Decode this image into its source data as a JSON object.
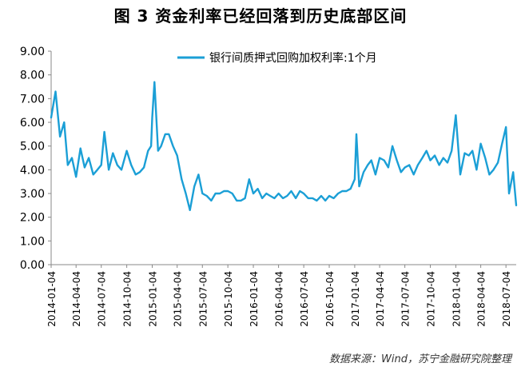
{
  "header": {
    "title": "图 3  资金利率已经回落到历史底部区间"
  },
  "footer": {
    "source": "数据来源：Wind，苏宁金融研究院整理"
  },
  "chart_data": {
    "type": "line",
    "title": "图 3  资金利率已经回落到历史底部区间",
    "xlabel": "",
    "ylabel": "",
    "ylim": [
      0,
      9
    ],
    "yticks": [
      "0.00",
      "1.00",
      "2.00",
      "3.00",
      "4.00",
      "5.00",
      "6.00",
      "7.00",
      "8.00",
      "9.00"
    ],
    "xticks": [
      "2014-01-04",
      "2014-04-04",
      "2014-07-04",
      "2014-10-04",
      "2015-01-04",
      "2015-04-04",
      "2015-07-04",
      "2015-10-04",
      "2016-01-04",
      "2016-04-04",
      "2016-07-04",
      "2016-10-04",
      "2017-01-04",
      "2017-04-04",
      "2017-07-04",
      "2017-10-04",
      "2018-01-04",
      "2018-04-04",
      "2018-07-04"
    ],
    "grid": false,
    "legend_position": "top",
    "series_color": "#1b9fd6",
    "series": [
      {
        "name": "银行间质押式回购加权利率:1个月",
        "x": [
          "2014-01-04",
          "2014-01-20",
          "2014-02-05",
          "2014-02-20",
          "2014-03-05",
          "2014-03-20",
          "2014-04-04",
          "2014-04-20",
          "2014-05-05",
          "2014-05-20",
          "2014-06-05",
          "2014-06-20",
          "2014-07-04",
          "2014-07-15",
          "2014-07-31",
          "2014-08-15",
          "2014-08-31",
          "2014-09-15",
          "2014-10-04",
          "2014-10-20",
          "2014-11-05",
          "2014-11-20",
          "2014-12-05",
          "2014-12-20",
          "2014-12-31",
          "2015-01-04",
          "2015-01-12",
          "2015-01-25",
          "2015-02-05",
          "2015-02-20",
          "2015-03-05",
          "2015-03-20",
          "2015-04-04",
          "2015-04-20",
          "2015-05-05",
          "2015-05-20",
          "2015-06-05",
          "2015-06-20",
          "2015-07-04",
          "2015-07-20",
          "2015-08-05",
          "2015-08-20",
          "2015-09-05",
          "2015-09-20",
          "2015-10-04",
          "2015-10-20",
          "2015-11-05",
          "2015-11-20",
          "2015-12-05",
          "2015-12-20",
          "2016-01-04",
          "2016-01-20",
          "2016-02-05",
          "2016-02-20",
          "2016-03-05",
          "2016-03-20",
          "2016-04-04",
          "2016-04-20",
          "2016-05-05",
          "2016-05-20",
          "2016-06-05",
          "2016-06-20",
          "2016-07-04",
          "2016-07-20",
          "2016-08-05",
          "2016-08-20",
          "2016-09-05",
          "2016-09-20",
          "2016-10-04",
          "2016-10-20",
          "2016-11-05",
          "2016-11-20",
          "2016-12-05",
          "2016-12-20",
          "2017-01-04",
          "2017-01-10",
          "2017-01-20",
          "2017-02-05",
          "2017-02-20",
          "2017-03-05",
          "2017-03-20",
          "2017-04-04",
          "2017-04-20",
          "2017-05-05",
          "2017-05-20",
          "2017-06-05",
          "2017-06-20",
          "2017-07-04",
          "2017-07-20",
          "2017-08-05",
          "2017-08-20",
          "2017-09-05",
          "2017-09-20",
          "2017-10-04",
          "2017-10-20",
          "2017-11-05",
          "2017-11-20",
          "2017-12-05",
          "2017-12-20",
          "2018-01-04",
          "2018-01-20",
          "2018-02-05",
          "2018-02-20",
          "2018-03-05",
          "2018-03-20",
          "2018-04-04",
          "2018-04-20",
          "2018-05-05",
          "2018-05-20",
          "2018-06-05",
          "2018-06-20",
          "2018-07-04",
          "2018-07-15",
          "2018-07-30",
          "2018-08-10"
        ],
        "values": [
          6.2,
          7.3,
          5.4,
          6.0,
          4.2,
          4.5,
          3.7,
          4.9,
          4.1,
          4.5,
          3.8,
          4.0,
          4.2,
          5.6,
          4.0,
          4.7,
          4.2,
          4.0,
          4.8,
          4.2,
          3.8,
          3.9,
          4.1,
          4.8,
          5.0,
          6.2,
          7.7,
          4.8,
          5.0,
          5.5,
          5.5,
          5.0,
          4.6,
          3.6,
          3.0,
          2.3,
          3.3,
          3.8,
          3.0,
          2.9,
          2.7,
          3.0,
          3.0,
          3.1,
          3.1,
          3.0,
          2.7,
          2.7,
          2.8,
          3.6,
          3.0,
          3.2,
          2.8,
          3.0,
          2.9,
          2.8,
          3.0,
          2.8,
          2.9,
          3.1,
          2.8,
          3.1,
          3.0,
          2.8,
          2.8,
          2.7,
          2.9,
          2.7,
          2.9,
          2.8,
          3.0,
          3.1,
          3.1,
          3.2,
          3.6,
          5.5,
          3.3,
          3.9,
          4.2,
          4.4,
          3.8,
          4.5,
          4.4,
          4.1,
          5.0,
          4.4,
          3.9,
          4.1,
          4.2,
          3.8,
          4.2,
          4.5,
          4.8,
          4.4,
          4.6,
          4.2,
          4.5,
          4.3,
          4.8,
          6.3,
          3.8,
          4.7,
          4.6,
          4.8,
          4.0,
          5.1,
          4.5,
          3.8,
          4.0,
          4.3,
          5.1,
          5.8,
          3.0,
          3.9,
          2.5
        ]
      }
    ]
  }
}
